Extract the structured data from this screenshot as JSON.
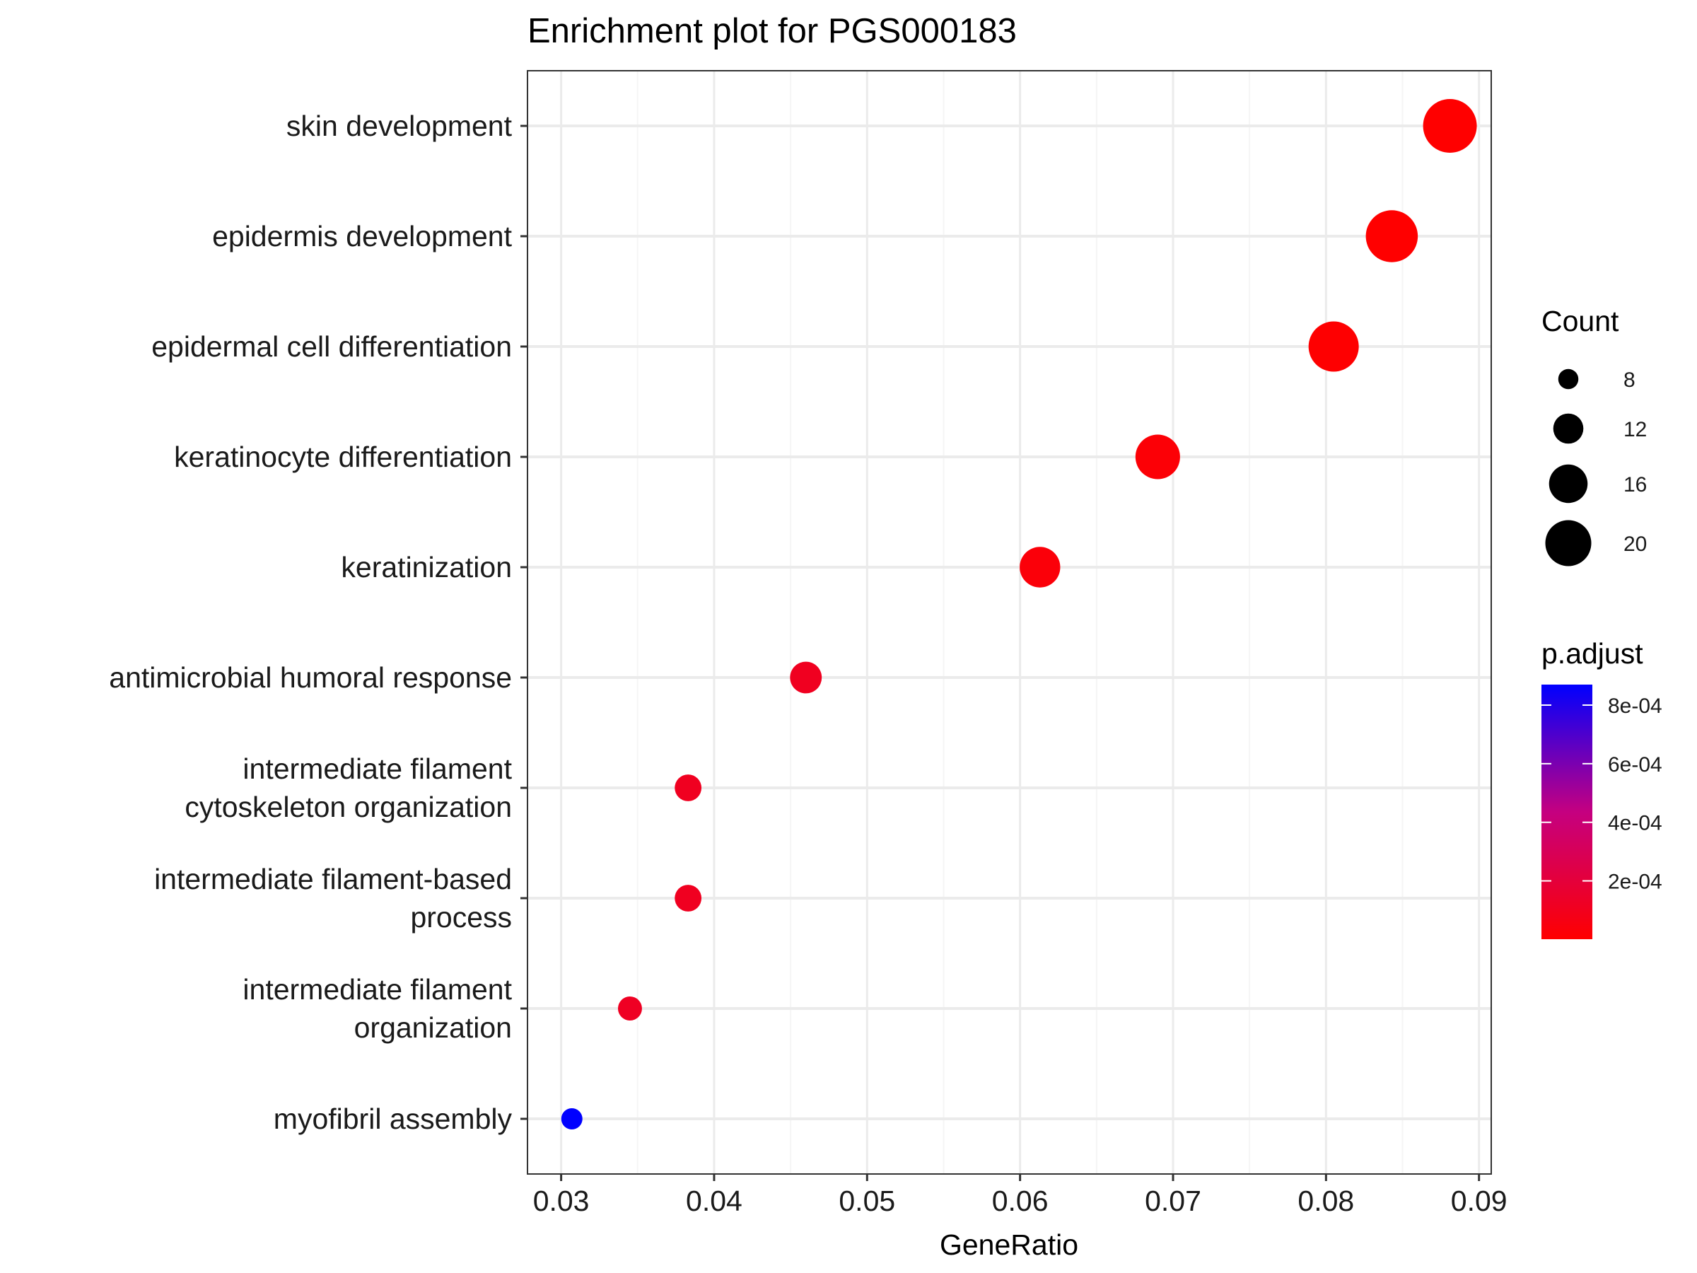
{
  "chart_data": {
    "type": "scatter",
    "title": "Enrichment plot for PGS000183",
    "xlabel": "GeneRatio",
    "ylabel": "",
    "xlim": [
      0.0278,
      0.0908
    ],
    "xticks": [
      "0.03",
      "0.04",
      "0.05",
      "0.06",
      "0.07",
      "0.08",
      "0.09"
    ],
    "grid": true,
    "categories": [
      [
        "skin development"
      ],
      [
        "epidermis development"
      ],
      [
        "epidermal cell differentiation"
      ],
      [
        "keratinocyte differentiation"
      ],
      [
        "keratinization"
      ],
      [
        "antimicrobial humoral response"
      ],
      [
        "intermediate filament",
        "cytoskeleton organization"
      ],
      [
        "intermediate filament-based",
        "process"
      ],
      [
        "intermediate filament",
        "organization"
      ],
      [
        "myofibril assembly"
      ]
    ],
    "points": [
      {
        "gene_ratio": 0.0881,
        "count": 23,
        "p_adjust": 1e-06
      },
      {
        "gene_ratio": 0.0843,
        "count": 22,
        "p_adjust": 2e-06
      },
      {
        "gene_ratio": 0.0805,
        "count": 21,
        "p_adjust": 5e-06
      },
      {
        "gene_ratio": 0.069,
        "count": 18,
        "p_adjust": 2e-05
      },
      {
        "gene_ratio": 0.0613,
        "count": 16,
        "p_adjust": 3e-05
      },
      {
        "gene_ratio": 0.046,
        "count": 12,
        "p_adjust": 0.00011
      },
      {
        "gene_ratio": 0.0383,
        "count": 10,
        "p_adjust": 0.00011
      },
      {
        "gene_ratio": 0.0383,
        "count": 10,
        "p_adjust": 0.00011
      },
      {
        "gene_ratio": 0.0345,
        "count": 9,
        "p_adjust": 0.00012
      },
      {
        "gene_ratio": 0.0307,
        "count": 8,
        "p_adjust": 0.00087
      }
    ],
    "legend": {
      "position": "right",
      "size_title": "Count",
      "size_breaks": [
        8,
        12,
        16,
        20
      ],
      "color_title": "p.adjust",
      "color_breaks": [
        "8e-04",
        "6e-04",
        "4e-04",
        "2e-04"
      ],
      "color_break_values": [
        0.0008,
        0.0006,
        0.0004,
        0.0002
      ],
      "color_range": [
        1e-06,
        0.00087
      ],
      "color_low": "#FF0000",
      "color_high": "#0000FF"
    },
    "colors": {
      "panel_border": "#333333",
      "grid_major": "#EBEBEB",
      "grid_minor": "#F5F5F5",
      "point_size_legend": "#000000"
    }
  }
}
